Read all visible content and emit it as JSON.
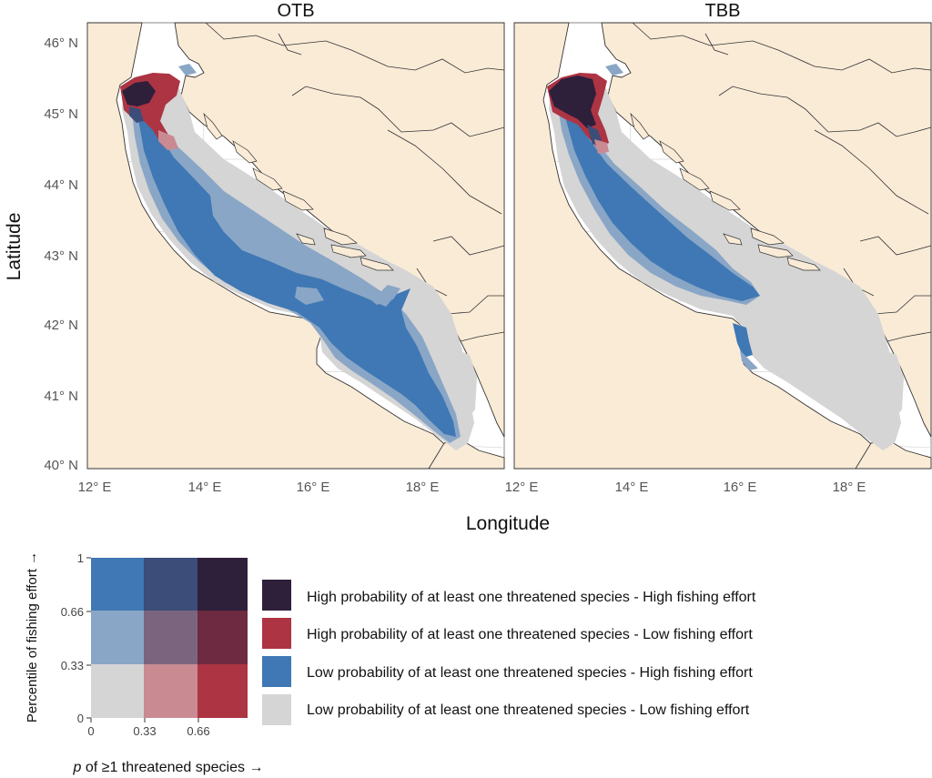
{
  "panels": [
    {
      "title": "OTB"
    },
    {
      "title": "TBB"
    }
  ],
  "axes": {
    "y_title": "Latitude",
    "x_title": "Longitude",
    "lat_ticks": [
      "46° N",
      "45° N",
      "44° N",
      "43° N",
      "42° N",
      "41° N",
      "40° N"
    ],
    "lon_ticks": [
      "12° E",
      "14° E",
      "16° E",
      "18° E"
    ]
  },
  "colors": {
    "land": "#faebd7",
    "sea": "#ffffff",
    "border": "#333333",
    "graticule": "#d9d9d9"
  },
  "bivariate_key": {
    "y_title": "Percentile of fishing effort →",
    "x_title_italic": "p",
    "x_title_rest": " of ≥1 threatened species →",
    "y_ticks": [
      "1",
      "0.66",
      "0.33",
      "0"
    ],
    "x_ticks": [
      "0",
      "0.33",
      "0.66"
    ],
    "cells": [
      [
        "#3f78b4",
        "#3b4d78",
        "#2e1f3b"
      ],
      [
        "#8aa6c6",
        "#7b657e",
        "#6d2a40"
      ],
      [
        "#d5d5d5",
        "#c98a92",
        "#ad3443"
      ]
    ]
  },
  "legend": [
    {
      "color": "#2e1f3b",
      "label": "High probability of at least one threatened species - High fishing effort"
    },
    {
      "color": "#ad3443",
      "label": "High probability of at least one threatened species - Low fishing effort"
    },
    {
      "color": "#3f78b4",
      "label": "Low probability of at least one threatened species - High fishing effort"
    },
    {
      "color": "#d5d5d5",
      "label": "Low probability of at least one threatened species - Low fishing effort"
    }
  ]
}
